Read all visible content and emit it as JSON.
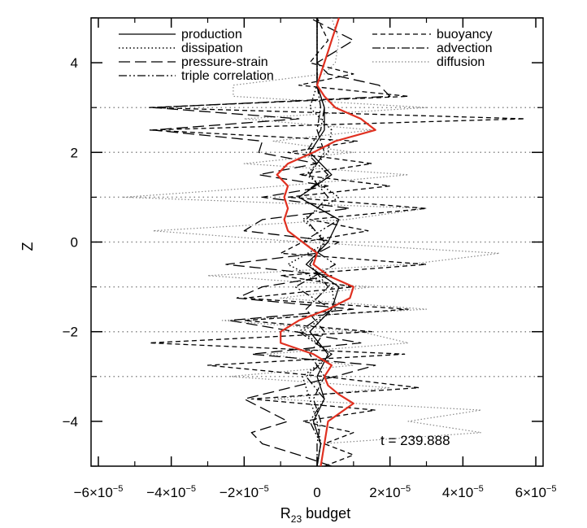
{
  "chart_data": {
    "type": "line",
    "xlabel_main": "R",
    "xlabel_sub": "23",
    "xlabel_rest": " budget",
    "ylabel": "Z",
    "xlim": [
      -6.2e-05,
      6.2e-05
    ],
    "ylim": [
      -5,
      5
    ],
    "grid": "dotted horizontal lines at z = -3, -2, -1, 0, 1, 2, 3",
    "x_ticks": [
      {
        "value": -6e-05,
        "label": "−6×10"
      },
      {
        "value": -4e-05,
        "label": "−4×10"
      },
      {
        "value": -2e-05,
        "label": "−2×10"
      },
      {
        "value": 0,
        "label": "0"
      },
      {
        "value": 2e-05,
        "label": "2×10"
      },
      {
        "value": 4e-05,
        "label": "4×10"
      },
      {
        "value": 6e-05,
        "label": "6×10"
      }
    ],
    "x_tick_exponent": "−5",
    "y_ticks": [
      {
        "value": -4,
        "label": "−4"
      },
      {
        "value": -2,
        "label": "−2"
      },
      {
        "value": 0,
        "label": "0"
      },
      {
        "value": 2,
        "label": "2"
      },
      {
        "value": 4,
        "label": "4"
      }
    ],
    "annotation": "t = 239.888",
    "legend_position": "top",
    "series": [
      {
        "name": "production",
        "style": "solid",
        "color": "#000000",
        "z": [
          -5,
          -4.5,
          -4,
          -3.5,
          -3,
          -2.5,
          -2,
          -1.5,
          -1,
          -0.5,
          0,
          0.5,
          1,
          1.5,
          2,
          2.5,
          3,
          3.5,
          4,
          4.5,
          5
        ],
        "x": [
          0,
          1e-06,
          -1e-06,
          2e-06,
          0,
          3e-06,
          -2e-06,
          4e-06,
          6e-06,
          -3e-06,
          3e-06,
          6e-06,
          -5e-06,
          4e-06,
          -2e-06,
          2e-06,
          2e-06,
          0,
          0,
          0,
          0
        ]
      },
      {
        "name": "dissipation",
        "style": "dotted",
        "color": "#000000",
        "z": [
          -5,
          -4.5,
          -4,
          -3.5,
          -3,
          -2.5,
          -2,
          -1.5,
          -1,
          -0.5,
          0,
          0.5,
          1,
          1.5,
          2,
          2.5,
          3,
          3.5,
          4,
          4.5,
          5
        ],
        "x": [
          0,
          1e-06,
          0,
          -2e-06,
          -4e-06,
          4e-06,
          -4e-06,
          5e-06,
          4e-06,
          -8e-06,
          3e-06,
          -4e-06,
          6e-06,
          -3e-06,
          3e-06,
          4e-06,
          -2e-06,
          0,
          0,
          0,
          0
        ]
      },
      {
        "name": "pressure-strain",
        "style": "long-dash",
        "color": "#000000",
        "z": [
          -5,
          -4.75,
          -4.5,
          -4.25,
          -4,
          -3.5,
          -3,
          -2.75,
          -2.5,
          -2.25,
          -2,
          -1.75,
          -1.5,
          -1.25,
          -1,
          -0.75,
          -0.5,
          -0.25,
          0,
          0.25,
          0.5,
          0.75,
          1,
          1.25,
          1.5,
          1.75,
          2,
          2.25,
          2.5,
          2.75,
          3,
          3.25,
          3.5,
          3.75,
          4,
          4.5,
          5
        ],
        "x": [
          4e-06,
          -5e-06,
          -1.5e-05,
          -1.8e-05,
          -8e-06,
          -2e-05,
          5e-06,
          1.6e-05,
          -1.8e-05,
          1.2e-05,
          -6e-06,
          -2.4e-05,
          1e-05,
          -2.2e-05,
          -1.5e-05,
          4e-06,
          -2.5e-05,
          0,
          6e-06,
          -2e-05,
          -1.5e-05,
          9e-06,
          -1.5e-05,
          3e-06,
          -1.6e-05,
          0,
          -1.6e-05,
          -1.5e-05,
          -4.5e-05,
          -5e-06,
          -4.5e-05,
          2e-05,
          1.7e-05,
          3e-06,
          0,
          1e-05,
          -2e-06
        ]
      },
      {
        "name": "triple correlation",
        "style": "dash-dot-dot",
        "color": "#000000",
        "z": [
          -5,
          -4.5,
          -4,
          -3.5,
          -3,
          -2.5,
          -2,
          -1.5,
          -1,
          -0.5,
          0,
          0.5,
          1,
          1.5,
          2,
          2.5,
          3,
          3.5,
          4,
          4.5,
          5
        ],
        "x": [
          0,
          1e-06,
          -2e-06,
          2e-06,
          -3e-06,
          4e-06,
          -5e-06,
          4e-06,
          -6e-06,
          5e-06,
          -4e-06,
          6e-06,
          -5e-06,
          3e-06,
          -3e-06,
          1e-06,
          2e-06,
          0,
          0,
          0,
          0
        ]
      },
      {
        "name": "buoyancy",
        "style": "short-dash",
        "color": "#000000",
        "z": [
          -5,
          -4.75,
          -4.5,
          -4.25,
          -4,
          -3.75,
          -3.5,
          -3.25,
          -3,
          -2.75,
          -2.5,
          -2.25,
          -2,
          -1.75,
          -1.5,
          -1.25,
          -1,
          -0.75,
          -0.5,
          -0.25,
          0,
          0.25,
          0.5,
          0.75,
          1,
          1.25,
          1.5,
          1.75,
          2,
          2.25,
          2.5,
          2.75,
          3,
          3.25,
          3.5,
          3.75,
          4,
          4.5,
          5
        ],
        "x": [
          2e-06,
          1e-05,
          2e-06,
          1e-05,
          -4e-06,
          1.6e-05,
          -1.8e-05,
          2.8e-05,
          2e-06,
          -3e-05,
          2.4e-05,
          -4.6e-05,
          1.5e-05,
          -2e-05,
          2.5e-05,
          -2e-05,
          1e-05,
          -1e-05,
          3e-05,
          -1e-05,
          -4e-06,
          1.4e-05,
          -2e-06,
          3e-05,
          -8e-06,
          2e-05,
          -5e-06,
          1.5e-05,
          -8e-06,
          1.1e-05,
          -4.6e-05,
          5.7e-05,
          -4.6e-05,
          2.5e-05,
          -5e-06,
          1e-05,
          -2e-06,
          3e-06,
          0
        ]
      },
      {
        "name": "advection",
        "style": "dash-dot",
        "color": "#000000",
        "z": [
          -5,
          -4.5,
          -4,
          -3.5,
          -3,
          -2.5,
          -2,
          -1.5,
          -1,
          -0.5,
          0,
          0.5,
          1,
          1.5,
          2,
          2.5,
          3,
          3.5,
          4,
          4.5,
          5
        ],
        "x": [
          0,
          0,
          1e-06,
          -1e-06,
          2e-06,
          -2e-06,
          2e-06,
          -3e-06,
          3e-06,
          -2e-06,
          2e-06,
          -3e-06,
          3e-06,
          -2e-06,
          2e-06,
          0,
          1e-06,
          0,
          0,
          0,
          0
        ]
      },
      {
        "name": "diffusion",
        "style": "light-dotted",
        "color": "#888888",
        "z": [
          -5,
          -4.5,
          -4.25,
          -4,
          -3.75,
          -3.5,
          -3.25,
          -3,
          -2.75,
          -2.5,
          -2.25,
          -2,
          -1.75,
          -1.5,
          -1.25,
          -1,
          -0.75,
          -0.5,
          -0.25,
          0,
          0.25,
          0.5,
          0.75,
          1,
          1.25,
          1.5,
          1.75,
          2,
          2.25,
          2.5,
          2.75,
          3,
          3.25,
          3.5,
          3.75,
          4,
          4.5,
          5
        ],
        "x": [
          0,
          1e-06,
          4.5e-05,
          2.5e-05,
          4.5e-05,
          -1.2e-05,
          2e-05,
          -2.4e-05,
          1e-05,
          -1.4e-05,
          2.5e-05,
          1.2e-05,
          -2.6e-05,
          3e-05,
          -1e-05,
          1.5e-05,
          -3e-05,
          2.5e-05,
          5e-05,
          -4e-06,
          -4.5e-05,
          8e-06,
          3e-05,
          -5.3e-05,
          -1e-05,
          2.5e-05,
          -2e-05,
          1e-05,
          -1.2e-05,
          1.5e-05,
          -2e-05,
          3e-05,
          -2.3e-05,
          -2.3e-05,
          2e-06,
          5e-06,
          6e-06,
          4e-06
        ]
      },
      {
        "name": "",
        "style": "thick",
        "color": "#e03020",
        "z": [
          -5,
          -4.5,
          -4,
          -3.6,
          -3.4,
          -3.2,
          -3,
          -2.75,
          -2.5,
          -2.25,
          -2,
          -1.75,
          -1.5,
          -1.25,
          -1,
          -0.75,
          -0.5,
          -0.25,
          0,
          0.25,
          0.5,
          0.75,
          1,
          1.25,
          1.5,
          1.75,
          2,
          2.25,
          2.5,
          2.75,
          3,
          3.25,
          3.5,
          3.75,
          4,
          4.25,
          4.5,
          4.75,
          5
        ],
        "x": [
          1e-06,
          2e-06,
          3e-06,
          1e-05,
          6e-06,
          3e-06,
          2e-06,
          4e-06,
          -1e-06,
          -1e-05,
          -1e-05,
          -5e-06,
          3e-06,
          9e-06,
          1e-05,
          3e-06,
          -1e-06,
          0,
          -4e-06,
          -8e-06,
          -9e-06,
          -8e-06,
          -9e-06,
          -8e-06,
          -1.1e-05,
          -8e-06,
          -1e-06,
          5e-06,
          1.6e-05,
          1.2e-05,
          5e-06,
          2e-06,
          0,
          1e-06,
          2e-06,
          3e-06,
          4e-06,
          5e-06,
          6e-06
        ]
      }
    ]
  }
}
